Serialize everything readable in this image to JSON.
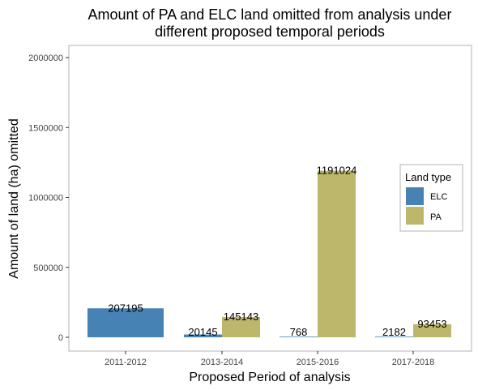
{
  "chart_data": {
    "type": "bar",
    "title": "Amount of PA and ELC land omitted from analysis under different proposed temporal periods",
    "title_lines": [
      "Amount of PA and ELC land omitted from analysis under",
      "different proposed temporal periods"
    ],
    "xlabel": "Proposed Period of analysis",
    "ylabel": "Amount of land (ha) omitted",
    "categories": [
      "2011-2012",
      "2013-2014",
      "2015-2016",
      "2017-2018"
    ],
    "series": [
      {
        "name": "ELC",
        "color": "#4682b4",
        "values": [
          207195,
          20145,
          768,
          2182
        ]
      },
      {
        "name": "PA",
        "color": "#bdb76b",
        "values": [
          null,
          145143,
          1191024,
          93453
        ]
      }
    ],
    "ylim": [
      0,
      2000000
    ],
    "yticks": [
      0,
      500000,
      1000000,
      1500000,
      2000000
    ],
    "ytick_labels": [
      "0",
      "500000",
      "1000000",
      "1500000",
      "2000000"
    ],
    "grid": false,
    "legend": {
      "title": "Land type",
      "position": "right"
    }
  }
}
